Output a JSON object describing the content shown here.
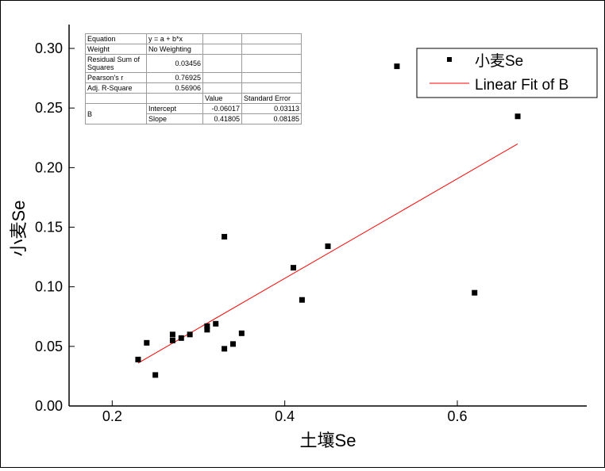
{
  "chart_data": {
    "type": "scatter",
    "xlabel": "土壤Se",
    "ylabel": "小麦Se",
    "xlim": [
      0.15,
      0.75
    ],
    "ylim": [
      0.0,
      0.32
    ],
    "x_ticks": [
      0.2,
      0.4,
      0.6
    ],
    "x_tick_labels": [
      "0.2",
      "0.4",
      "0.6"
    ],
    "y_ticks": [
      0.0,
      0.05,
      0.1,
      0.15,
      0.2,
      0.25,
      0.3
    ],
    "y_tick_labels": [
      "0.00",
      "0.05",
      "0.10",
      "0.15",
      "0.20",
      "0.25",
      "0.30"
    ],
    "grid": false,
    "legend_position": "top-right",
    "series": [
      {
        "name": "小麦Se",
        "marker": "square",
        "color": "#000000",
        "points": [
          {
            "x": 0.23,
            "y": 0.039
          },
          {
            "x": 0.24,
            "y": 0.053
          },
          {
            "x": 0.25,
            "y": 0.026
          },
          {
            "x": 0.27,
            "y": 0.055
          },
          {
            "x": 0.27,
            "y": 0.06
          },
          {
            "x": 0.28,
            "y": 0.057
          },
          {
            "x": 0.29,
            "y": 0.06
          },
          {
            "x": 0.31,
            "y": 0.064
          },
          {
            "x": 0.31,
            "y": 0.067
          },
          {
            "x": 0.32,
            "y": 0.069
          },
          {
            "x": 0.33,
            "y": 0.048
          },
          {
            "x": 0.33,
            "y": 0.142
          },
          {
            "x": 0.34,
            "y": 0.052
          },
          {
            "x": 0.35,
            "y": 0.061
          },
          {
            "x": 0.41,
            "y": 0.116
          },
          {
            "x": 0.42,
            "y": 0.089
          },
          {
            "x": 0.45,
            "y": 0.134
          },
          {
            "x": 0.53,
            "y": 0.285
          },
          {
            "x": 0.62,
            "y": 0.095
          },
          {
            "x": 0.67,
            "y": 0.243
          }
        ]
      },
      {
        "name": "Linear Fit of B",
        "type": "line",
        "color": "#ff0000",
        "intercept": -0.06017,
        "slope": 0.41805,
        "x_range": [
          0.23,
          0.67
        ]
      }
    ],
    "fit_table": {
      "rows": [
        {
          "label": "Equation",
          "value": "y = a + b*x"
        },
        {
          "label": "Weight",
          "value": "No Weighting"
        },
        {
          "label": "Residual Sum of Squares",
          "value": "0.03456"
        },
        {
          "label": "Pearson's r",
          "value": "0.76925"
        },
        {
          "label": "Adj. R-Square",
          "value": "0.56906"
        }
      ],
      "param_headers": [
        "Value",
        "Standard Error"
      ],
      "param_group": "B",
      "params": [
        {
          "name": "Intercept",
          "value": "-0.06017",
          "error": "0.03113"
        },
        {
          "name": "Slope",
          "value": "0.41805",
          "error": "0.08185"
        }
      ]
    }
  }
}
